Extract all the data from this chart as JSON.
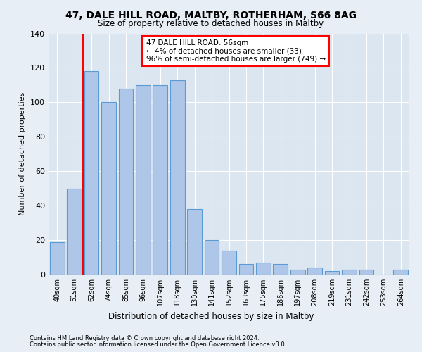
{
  "title1": "47, DALE HILL ROAD, MALTBY, ROTHERHAM, S66 8AG",
  "title2": "Size of property relative to detached houses in Maltby",
  "xlabel": "Distribution of detached houses by size in Maltby",
  "ylabel": "Number of detached properties",
  "categories": [
    "40sqm",
    "51sqm",
    "62sqm",
    "74sqm",
    "85sqm",
    "96sqm",
    "107sqm",
    "118sqm",
    "130sqm",
    "141sqm",
    "152sqm",
    "163sqm",
    "175sqm",
    "186sqm",
    "197sqm",
    "208sqm",
    "219sqm",
    "231sqm",
    "242sqm",
    "253sqm",
    "264sqm"
  ],
  "values": [
    19,
    50,
    118,
    100,
    108,
    110,
    110,
    113,
    38,
    20,
    14,
    6,
    7,
    6,
    3,
    4,
    2,
    3,
    3,
    0,
    3
  ],
  "bar_color": "#aec6e8",
  "bar_edge_color": "#5b9bd5",
  "vline_color": "red",
  "annotation_text": "47 DALE HILL ROAD: 56sqm\n← 4% of detached houses are smaller (33)\n96% of semi-detached houses are larger (749) →",
  "annotation_box_color": "white",
  "annotation_box_edge": "red",
  "footnote1": "Contains HM Land Registry data © Crown copyright and database right 2024.",
  "footnote2": "Contains public sector information licensed under the Open Government Licence v3.0.",
  "bg_color": "#e8eef5",
  "plot_bg_color": "#dce6f0",
  "grid_color": "white",
  "ylim": [
    0,
    140
  ]
}
